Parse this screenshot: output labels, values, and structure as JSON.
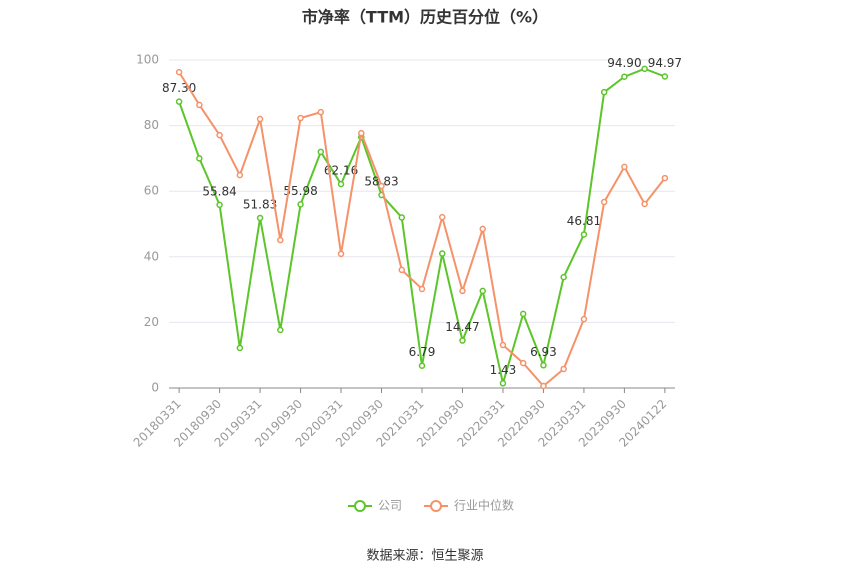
{
  "chart_data": {
    "type": "line",
    "title": "市净率（TTM）历史百分位（%）",
    "categories": [
      "20180331",
      null,
      "20180930",
      null,
      "20190331",
      null,
      "20190930",
      null,
      "20200331",
      null,
      "20200930",
      null,
      "20210331",
      null,
      "20210930",
      null,
      "20220331",
      null,
      "20220930",
      null,
      "20230331",
      null,
      "20230930",
      null,
      "20240122"
    ],
    "series": [
      {
        "name": "公司",
        "color": "#5cc52a",
        "values": [
          87.3,
          70,
          55.84,
          12.2,
          51.83,
          17.7,
          55.98,
          72,
          62.16,
          76.5,
          58.83,
          52,
          6.79,
          41,
          14.47,
          29.6,
          1.43,
          22.6,
          6.93,
          33.8,
          46.81,
          90.2,
          94.9,
          97.3,
          94.97
        ],
        "value_labels": [
          "87.30",
          null,
          "55.84",
          null,
          "51.83",
          null,
          "55.98",
          null,
          "62.16",
          null,
          "58.83",
          null,
          "6.79",
          null,
          "14.47",
          null,
          "1.43",
          null,
          "6.93",
          null,
          "46.81",
          null,
          "94.90",
          null,
          "94.97"
        ]
      },
      {
        "name": "行业中位数",
        "color": "#f5926a",
        "values": [
          96.3,
          86.3,
          77.1,
          64.9,
          82,
          45.1,
          82.3,
          84.1,
          40.9,
          77.7,
          61.6,
          36,
          30.2,
          52.1,
          29.6,
          48.5,
          13.1,
          7.6,
          0.6,
          5.8,
          21,
          56.7,
          67.4,
          56.1,
          64
        ]
      }
    ],
    "ylim": [
      0,
      100
    ],
    "yticks": [
      0,
      20,
      40,
      60,
      80,
      100
    ],
    "grid": true,
    "source": "数据来源：恒生聚源"
  }
}
